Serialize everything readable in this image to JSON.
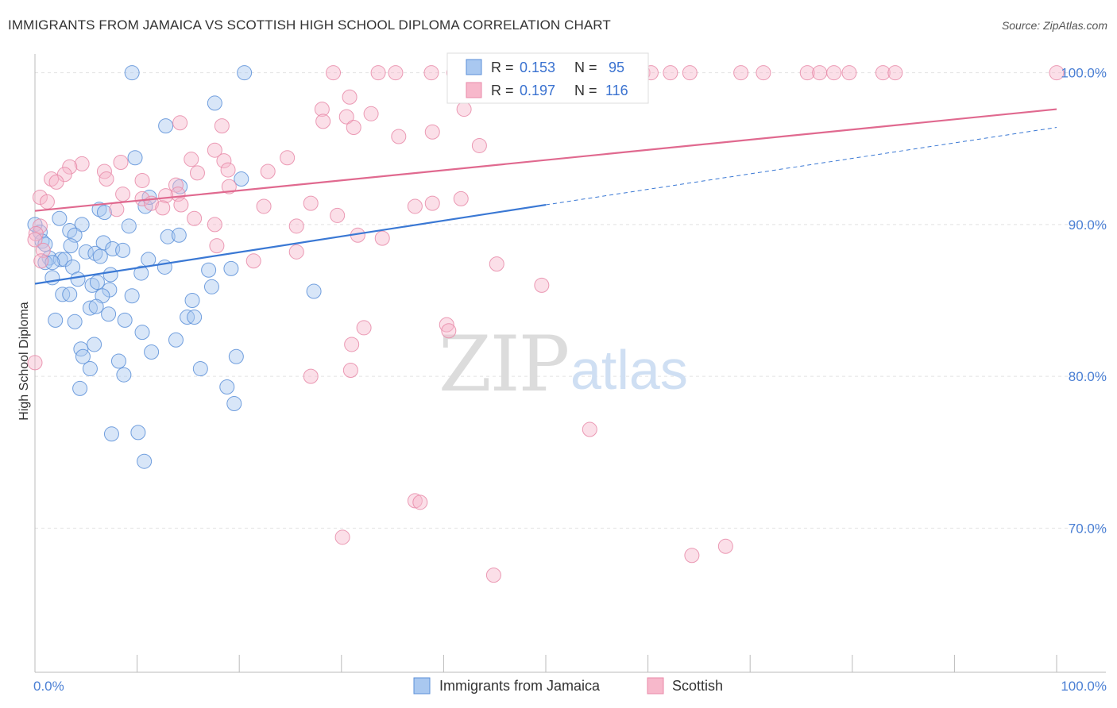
{
  "header": {
    "title": "IMMIGRANTS FROM JAMAICA VS SCOTTISH HIGH SCHOOL DIPLOMA CORRELATION CHART",
    "source": "Source: ZipAtlas.com"
  },
  "watermark": {
    "zip": "ZIP",
    "atlas": "atlas"
  },
  "legend_box": {
    "rows": [
      {
        "r_label": "R =",
        "r_value": "0.153",
        "n_label": "N =",
        "n_value": "95"
      },
      {
        "r_label": "R =",
        "r_value": "0.197",
        "n_label": "N =",
        "n_value": "116"
      }
    ]
  },
  "bottom_legend": {
    "items": [
      "Immigrants from Jamaica",
      "Scottish"
    ]
  },
  "colors": {
    "blue_fill": "#a9c8f0",
    "blue_stroke": "#5b8fd8",
    "blue_line": "#3a78d4",
    "pink_fill": "#f7b8cb",
    "pink_stroke": "#e88aa8",
    "pink_line": "#e0698f",
    "grid": "#e2e2e2",
    "tick_text": "#4a7fd4"
  },
  "chart_data": {
    "type": "scatter",
    "title": "IMMIGRANTS FROM JAMAICA VS SCOTTISH HIGH SCHOOL DIPLOMA CORRELATION CHART",
    "xlabel": "",
    "ylabel": "High School Diploma",
    "xlim": [
      0,
      100
    ],
    "ylim": [
      60.5,
      101.5
    ],
    "x_tick_labels": [
      "0.0%",
      "100.0%"
    ],
    "y_ticks": [
      70,
      80,
      90,
      100
    ],
    "y_tick_labels": [
      "70.0%",
      "80.0%",
      "90.0%",
      "100.0%"
    ],
    "grid": true,
    "legend_position": "top-center",
    "series": [
      {
        "name": "Immigrants from Jamaica",
        "r": 0.153,
        "n": 95,
        "trend": {
          "x": [
            0,
            50
          ],
          "y": [
            86.1,
            91.3
          ]
        },
        "trend_dashed": {
          "x": [
            50,
            100
          ],
          "y": [
            91.3,
            96.4
          ]
        },
        "points": [
          [
            9.5,
            100.0
          ],
          [
            20.5,
            100.0
          ],
          [
            12.8,
            96.5
          ],
          [
            9.8,
            94.4
          ],
          [
            14.2,
            92.5
          ],
          [
            20.2,
            93.0
          ],
          [
            17.6,
            98.0
          ],
          [
            10.8,
            91.2
          ],
          [
            11.2,
            91.8
          ],
          [
            6.3,
            91.0
          ],
          [
            6.8,
            90.8
          ],
          [
            4.6,
            90.0
          ],
          [
            9.2,
            89.9
          ],
          [
            2.4,
            90.4
          ],
          [
            3.4,
            89.6
          ],
          [
            0.0,
            90.0
          ],
          [
            0.5,
            89.5
          ],
          [
            0.7,
            88.9
          ],
          [
            1.0,
            88.7
          ],
          [
            3.9,
            89.3
          ],
          [
            13.0,
            89.2
          ],
          [
            14.1,
            89.3
          ],
          [
            3.5,
            88.6
          ],
          [
            6.7,
            88.8
          ],
          [
            7.6,
            88.4
          ],
          [
            8.6,
            88.3
          ],
          [
            5.0,
            88.2
          ],
          [
            5.9,
            88.1
          ],
          [
            1.4,
            87.8
          ],
          [
            2.5,
            87.7
          ],
          [
            2.9,
            87.7
          ],
          [
            6.4,
            87.9
          ],
          [
            1.0,
            87.5
          ],
          [
            1.7,
            87.5
          ],
          [
            3.7,
            87.2
          ],
          [
            4.2,
            86.4
          ],
          [
            11.1,
            87.7
          ],
          [
            12.7,
            87.2
          ],
          [
            17.0,
            87.0
          ],
          [
            19.2,
            87.1
          ],
          [
            7.4,
            86.7
          ],
          [
            10.4,
            86.8
          ],
          [
            1.7,
            86.5
          ],
          [
            2.7,
            85.4
          ],
          [
            3.4,
            85.4
          ],
          [
            5.6,
            86.0
          ],
          [
            6.1,
            86.2
          ],
          [
            7.3,
            85.7
          ],
          [
            17.3,
            85.9
          ],
          [
            27.3,
            85.6
          ],
          [
            6.6,
            85.3
          ],
          [
            9.5,
            85.3
          ],
          [
            5.4,
            84.5
          ],
          [
            6.0,
            84.6
          ],
          [
            7.2,
            84.1
          ],
          [
            15.4,
            85.0
          ],
          [
            2.0,
            83.7
          ],
          [
            3.9,
            83.6
          ],
          [
            8.8,
            83.7
          ],
          [
            14.9,
            83.9
          ],
          [
            15.6,
            83.9
          ],
          [
            10.5,
            82.9
          ],
          [
            13.8,
            82.4
          ],
          [
            5.8,
            82.1
          ],
          [
            4.5,
            81.8
          ],
          [
            11.4,
            81.6
          ],
          [
            4.7,
            81.3
          ],
          [
            8.2,
            81.0
          ],
          [
            19.7,
            81.3
          ],
          [
            5.4,
            80.5
          ],
          [
            8.7,
            80.1
          ],
          [
            16.2,
            80.5
          ],
          [
            4.4,
            79.2
          ],
          [
            18.8,
            79.3
          ],
          [
            19.5,
            78.2
          ],
          [
            7.5,
            76.2
          ],
          [
            10.1,
            76.3
          ],
          [
            10.7,
            74.4
          ]
        ]
      },
      {
        "name": "Scottish",
        "r": 0.197,
        "n": 116,
        "trend": {
          "x": [
            0,
            100
          ],
          "y": [
            90.9,
            97.6
          ]
        },
        "points": [
          [
            29.2,
            100.0
          ],
          [
            33.6,
            100.0
          ],
          [
            35.3,
            100.0
          ],
          [
            38.8,
            100.0
          ],
          [
            41.0,
            100.0
          ],
          [
            43.8,
            100.0
          ],
          [
            49.0,
            100.0
          ],
          [
            52.0,
            100.0
          ],
          [
            54.0,
            100.0
          ],
          [
            57.9,
            100.0
          ],
          [
            59.5,
            100.0
          ],
          [
            60.3,
            100.0
          ],
          [
            62.2,
            100.0
          ],
          [
            64.1,
            100.0
          ],
          [
            69.1,
            100.0
          ],
          [
            71.3,
            100.0
          ],
          [
            75.6,
            100.0
          ],
          [
            76.8,
            100.0
          ],
          [
            78.2,
            100.0
          ],
          [
            79.7,
            100.0
          ],
          [
            83.0,
            100.0
          ],
          [
            84.2,
            100.0
          ],
          [
            100.0,
            100.0
          ],
          [
            55.3,
            99.3
          ],
          [
            30.8,
            98.4
          ],
          [
            28.1,
            97.6
          ],
          [
            42.0,
            97.6
          ],
          [
            32.9,
            97.3
          ],
          [
            28.2,
            96.8
          ],
          [
            30.5,
            97.1
          ],
          [
            14.2,
            96.7
          ],
          [
            18.3,
            96.5
          ],
          [
            31.2,
            96.4
          ],
          [
            38.9,
            96.1
          ],
          [
            35.6,
            95.8
          ],
          [
            43.5,
            95.2
          ],
          [
            17.6,
            94.9
          ],
          [
            24.7,
            94.4
          ],
          [
            15.3,
            94.3
          ],
          [
            18.5,
            94.2
          ],
          [
            8.4,
            94.1
          ],
          [
            4.6,
            94.0
          ],
          [
            3.4,
            93.8
          ],
          [
            6.8,
            93.5
          ],
          [
            15.9,
            93.4
          ],
          [
            2.9,
            93.3
          ],
          [
            1.6,
            93.0
          ],
          [
            2.1,
            92.8
          ],
          [
            7.0,
            93.0
          ],
          [
            10.5,
            92.9
          ],
          [
            22.8,
            93.5
          ],
          [
            13.8,
            92.6
          ],
          [
            18.9,
            93.6
          ],
          [
            14.0,
            92.0
          ],
          [
            12.8,
            91.9
          ],
          [
            10.5,
            91.7
          ],
          [
            11.4,
            91.4
          ],
          [
            12.5,
            91.1
          ],
          [
            14.3,
            91.3
          ],
          [
            19.0,
            92.5
          ],
          [
            8.6,
            92.0
          ],
          [
            0.5,
            91.8
          ],
          [
            1.2,
            91.5
          ],
          [
            22.4,
            91.2
          ],
          [
            27.0,
            91.4
          ],
          [
            29.6,
            90.6
          ],
          [
            37.2,
            91.2
          ],
          [
            38.9,
            91.4
          ],
          [
            41.7,
            91.7
          ],
          [
            8.0,
            91.0
          ],
          [
            15.6,
            90.4
          ],
          [
            17.6,
            90.0
          ],
          [
            25.6,
            89.9
          ],
          [
            0.5,
            89.9
          ],
          [
            0.1,
            89.4
          ],
          [
            31.6,
            89.3
          ],
          [
            0.0,
            89.0
          ],
          [
            34.0,
            89.1
          ],
          [
            17.8,
            88.6
          ],
          [
            25.6,
            88.2
          ],
          [
            0.8,
            88.3
          ],
          [
            21.4,
            87.6
          ],
          [
            45.2,
            87.4
          ],
          [
            0.6,
            87.6
          ],
          [
            49.6,
            86.0
          ],
          [
            32.2,
            83.2
          ],
          [
            40.3,
            83.4
          ],
          [
            40.5,
            83.0
          ],
          [
            31.0,
            82.1
          ],
          [
            0.0,
            80.9
          ],
          [
            27.0,
            80.0
          ],
          [
            30.9,
            80.4
          ],
          [
            54.3,
            76.5
          ],
          [
            37.2,
            71.8
          ],
          [
            37.7,
            71.7
          ],
          [
            30.1,
            69.4
          ],
          [
            64.3,
            68.2
          ],
          [
            67.6,
            68.8
          ],
          [
            44.9,
            66.9
          ]
        ]
      }
    ]
  }
}
